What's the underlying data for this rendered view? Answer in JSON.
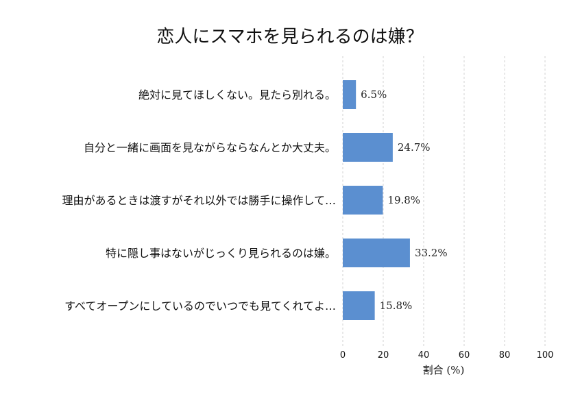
{
  "chart_data": {
    "type": "bar",
    "orientation": "horizontal",
    "title": "恋人にスマホを見られるのは嫌？",
    "xlabel": "割合 (%)",
    "ylabel": "",
    "xlim": [
      0,
      100
    ],
    "xticks": [
      0,
      20,
      40,
      60,
      80,
      100
    ],
    "grid": true,
    "bar_color": "#5b8fd0",
    "categories": [
      "絶対に見てほしくない。見たら別れる。",
      "自分と一緒に画面を見ながらならなんとか大丈夫。",
      "理由があるときは渡すがそれ以外では勝手に操作して…",
      "特に隠し事はないがじっくり見られるのは嫌。",
      "すべてオープンにしているのでいつでも見てくれてよ…"
    ],
    "values": [
      6.5,
      24.7,
      19.8,
      33.2,
      15.8
    ],
    "value_labels": [
      "6.5%",
      "24.7%",
      "19.8%",
      "33.2%",
      "15.8%"
    ]
  }
}
